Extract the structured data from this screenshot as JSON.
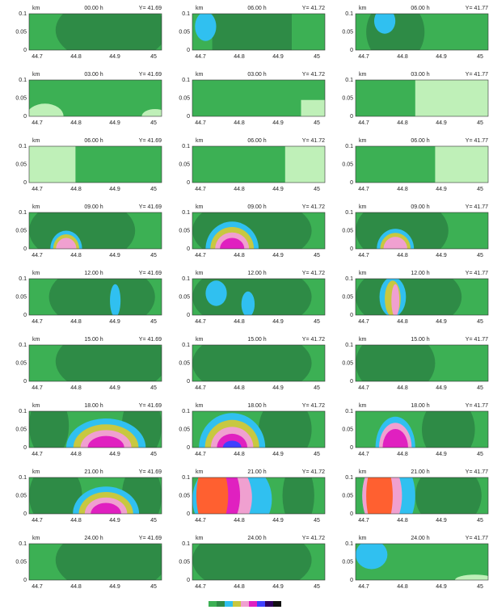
{
  "unit": "km",
  "panels": [
    {
      "time": "00.00 h",
      "y_label": "Y= 41.69"
    },
    {
      "time": "06.00 h",
      "y_label": "Y= 41.72"
    },
    {
      "time": "06.00 h",
      "y_label": "Y= 41.77"
    },
    {
      "time": "03.00 h",
      "y_label": "Y= 41.69"
    },
    {
      "time": "03.00 h",
      "y_label": "Y= 41.72"
    },
    {
      "time": "03.00 h",
      "y_label": "Y= 41.77"
    },
    {
      "time": "06.00 h",
      "y_label": "Y= 41.69"
    },
    {
      "time": "06.00 h",
      "y_label": "Y= 41.72"
    },
    {
      "time": "06.00 h",
      "y_label": "Y= 41.77"
    },
    {
      "time": "09.00 h",
      "y_label": "Y= 41.69"
    },
    {
      "time": "09.00 h",
      "y_label": "Y= 41.72"
    },
    {
      "time": "09.00 h",
      "y_label": "Y= 41.77"
    },
    {
      "time": "12.00 h",
      "y_label": "Y= 41.69"
    },
    {
      "time": "12.00 h",
      "y_label": "Y= 41.72"
    },
    {
      "time": "12.00 h",
      "y_label": "Y= 41.77"
    },
    {
      "time": "15.00 h",
      "y_label": "Y= 41.69"
    },
    {
      "time": "15.00 h",
      "y_label": "Y= 41.72"
    },
    {
      "time": "15.00 h",
      "y_label": "Y= 41.77"
    },
    {
      "time": "18.00 h",
      "y_label": "Y= 41.69"
    },
    {
      "time": "18.00 h",
      "y_label": "Y= 41.72"
    },
    {
      "time": "18.00 h",
      "y_label": "Y= 41.77"
    },
    {
      "time": "21.00 h",
      "y_label": "Y= 41.69"
    },
    {
      "time": "21.00 h",
      "y_label": "Y= 41.72"
    },
    {
      "time": "21.00 h",
      "y_label": "Y= 41.77"
    },
    {
      "time": "24.00 h",
      "y_label": "Y= 41.69"
    },
    {
      "time": "24.00 h",
      "y_label": "Y= 41.72"
    },
    {
      "time": "24.00 h",
      "y_label": "Y= 41.77"
    }
  ],
  "x_ticks": [
    "44.7",
    "44.8",
    "44.9",
    "45"
  ],
  "y_ticks": [
    "0",
    "0.05",
    "0.1"
  ]
}
